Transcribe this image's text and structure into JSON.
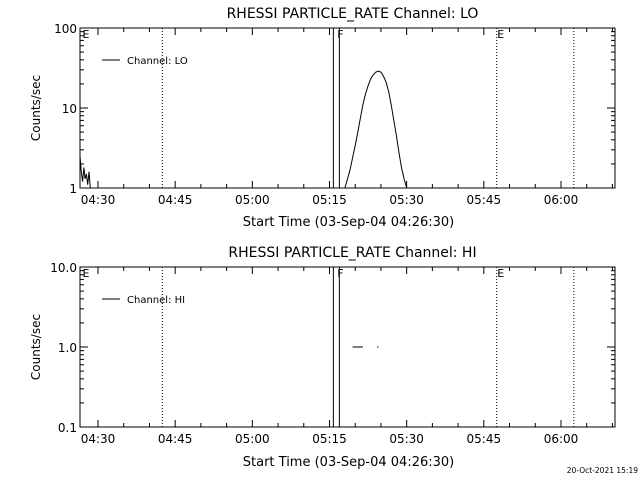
{
  "footer": {
    "timestamp": "20-Oct-2021 15:19"
  },
  "chart_data": [
    {
      "type": "line",
      "title": "RHESSI PARTICLE_RATE Channel: LO",
      "xlabel": "Start Time (03-Sep-04 04:26:30)",
      "ylabel": "Counts/sec",
      "y_scale": "log",
      "ylim": [
        1,
        100
      ],
      "xlim": [
        "04:26:30",
        "06:10:30"
      ],
      "x_ticks": [
        "04:30",
        "04:45",
        "05:00",
        "05:15",
        "05:30",
        "05:45",
        "06:00"
      ],
      "y_ticks": [
        "1",
        "10",
        "100"
      ],
      "legend": {
        "label": "Channel: LO",
        "placement": "top-left"
      },
      "event_markers": [
        {
          "label": "E",
          "time": "04:26:30",
          "style": "dotted"
        },
        {
          "label": "",
          "time": "04:42:30",
          "style": "dotted"
        },
        {
          "label": "F",
          "time": "05:16:20",
          "style": "solid-band"
        },
        {
          "label": "E",
          "time": "05:47:30",
          "style": "dotted"
        },
        {
          "label": "",
          "time": "06:02:30",
          "style": "dotted"
        }
      ],
      "series": [
        {
          "name": "Channel: LO",
          "segments": [
            {
              "x": [
                "04:26:30",
                "04:26:45",
                "04:27:00",
                "04:27:15",
                "04:27:30",
                "04:27:45",
                "04:28:00",
                "04:28:15",
                "04:28:30"
              ],
              "y": [
                2.5,
                1.6,
                1.2,
                1.8,
                1.3,
                1.5,
                1.1,
                1.6,
                1.0
              ]
            },
            {
              "x": [
                "05:18:00",
                "05:18:30",
                "05:19:00",
                "05:19:30",
                "05:20:00",
                "05:20:30",
                "05:21:00",
                "05:21:30",
                "05:22:00",
                "05:22:30",
                "05:23:00",
                "05:23:30",
                "05:24:00",
                "05:24:30",
                "05:25:00",
                "05:25:30",
                "05:26:00",
                "05:26:30",
                "05:27:00",
                "05:27:30",
                "05:28:00",
                "05:28:30",
                "05:29:00",
                "05:29:30",
                "05:30:00"
              ],
              "y": [
                1.0,
                1.3,
                1.7,
                2.4,
                3.4,
                5.0,
                7.5,
                11.0,
                15.0,
                19.0,
                23.0,
                26.0,
                28.0,
                29.0,
                28.0,
                25.0,
                21.0,
                16.0,
                11.0,
                7.0,
                4.5,
                2.8,
                1.8,
                1.3,
                1.0
              ]
            }
          ]
        }
      ]
    },
    {
      "type": "line",
      "title": "RHESSI PARTICLE_RATE Channel: HI",
      "xlabel": "Start Time (03-Sep-04 04:26:30)",
      "ylabel": "Counts/sec",
      "y_scale": "log",
      "ylim": [
        0.1,
        10
      ],
      "xlim": [
        "04:26:30",
        "06:10:30"
      ],
      "x_ticks": [
        "04:30",
        "04:45",
        "05:00",
        "05:15",
        "05:30",
        "05:45",
        "06:00"
      ],
      "y_ticks": [
        "0.1",
        "1.0",
        "10.0"
      ],
      "legend": {
        "label": "Channel: HI",
        "placement": "top-left"
      },
      "event_markers": [
        {
          "label": "E",
          "time": "04:26:30",
          "style": "dotted"
        },
        {
          "label": "",
          "time": "04:42:30",
          "style": "dotted"
        },
        {
          "label": "F",
          "time": "05:16:20",
          "style": "solid-band"
        },
        {
          "label": "E",
          "time": "05:47:30",
          "style": "dotted"
        },
        {
          "label": "",
          "time": "06:02:30",
          "style": "dotted"
        }
      ],
      "series": [
        {
          "name": "Channel: HI",
          "segments": [
            {
              "x": [
                "05:19:30",
                "05:21:30"
              ],
              "y": [
                1.0,
                1.0
              ]
            },
            {
              "x": [
                "05:24:15",
                "05:24:30"
              ],
              "y": [
                1.0,
                1.0
              ]
            }
          ]
        }
      ]
    }
  ]
}
